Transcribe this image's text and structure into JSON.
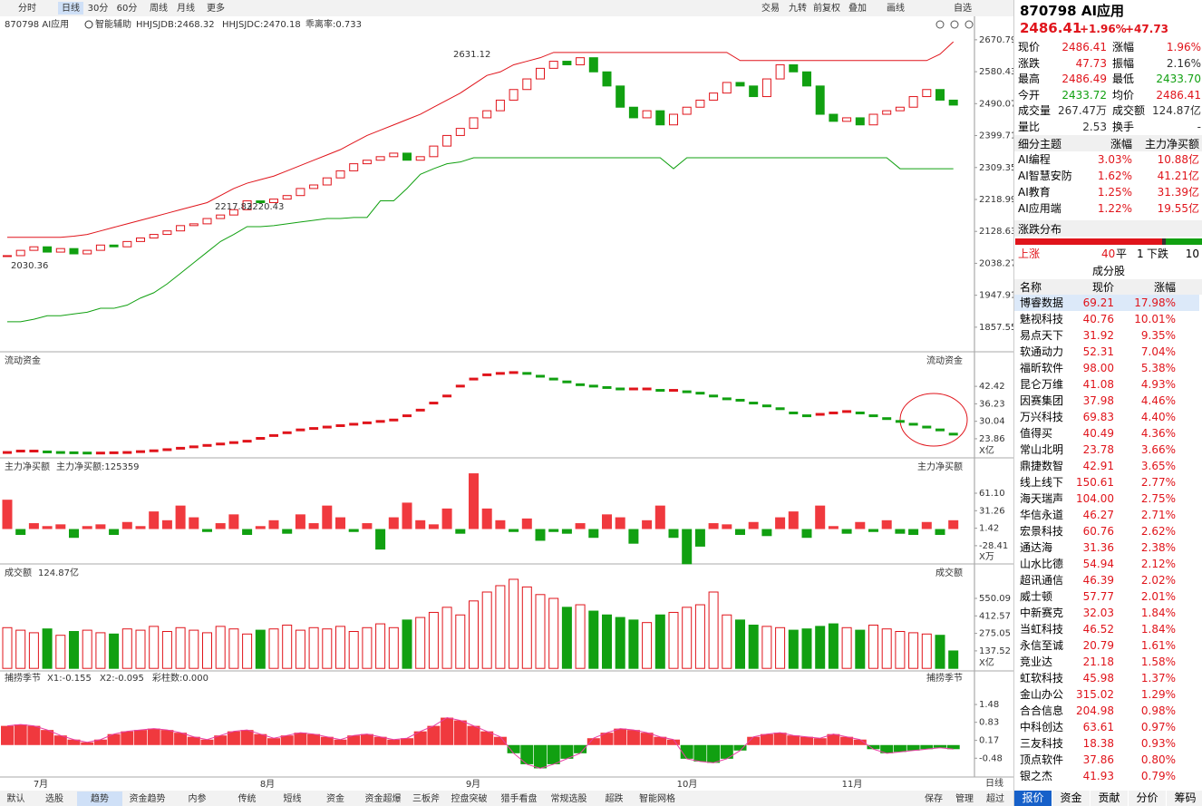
{
  "toolbar": {
    "left": [
      "分时",
      "日线",
      "30分",
      "60分",
      "周线",
      "月线",
      "更多"
    ],
    "right": [
      "交易",
      "九转",
      "前复权",
      "叠加",
      "画线",
      "自选"
    ]
  },
  "main": {
    "code": "870798  AI应用",
    "assist": "智能辅助",
    "jdb": "HHJSJDB:2468.32",
    "jdc": "HHJSJDC:2470.18",
    "bias": "乖离率:0.733",
    "ylim": [
      1788,
      2732
    ],
    "yticks": [
      2670.79,
      2580.43,
      2490.07,
      2399.71,
      2309.35,
      2218.99,
      2128.63,
      2038.27,
      1947.91,
      1857.55
    ],
    "annotations": [
      2631.12,
      2217.83,
      2220.43,
      2030.36
    ],
    "closes": [
      2060,
      2075,
      2085,
      2070,
      2080,
      2065,
      2075,
      2090,
      2085,
      2100,
      2110,
      2120,
      2130,
      2145,
      2150,
      2165,
      2175,
      2190,
      2215,
      2210,
      2220,
      2230,
      2250,
      2260,
      2280,
      2300,
      2320,
      2330,
      2340,
      2350,
      2330,
      2340,
      2370,
      2400,
      2420,
      2450,
      2470,
      2500,
      2530,
      2560,
      2590,
      2610,
      2600,
      2620,
      2580,
      2540,
      2480,
      2450,
      2470,
      2430,
      2460,
      2480,
      2500,
      2520,
      2550,
      2540,
      2510,
      2560,
      2600,
      2580,
      2540,
      2460,
      2440,
      2450,
      2430,
      2460,
      2470,
      2480,
      2510,
      2530,
      2500,
      2486
    ],
    "upper": [
      2112,
      2112,
      2112,
      2112,
      2112,
      2115,
      2120,
      2130,
      2140,
      2150,
      2160,
      2170,
      2180,
      2190,
      2200,
      2210,
      2230,
      2250,
      2265,
      2275,
      2285,
      2300,
      2315,
      2330,
      2345,
      2360,
      2380,
      2400,
      2415,
      2430,
      2445,
      2460,
      2480,
      2500,
      2520,
      2545,
      2570,
      2580,
      2600,
      2610,
      2620,
      2635,
      2635,
      2635,
      2635,
      2635,
      2635,
      2635,
      2635,
      2635,
      2635,
      2635,
      2635,
      2635,
      2635,
      2612,
      2612,
      2612,
      2612,
      2612,
      2612,
      2612,
      2612,
      2612,
      2612,
      2612,
      2612,
      2612,
      2612,
      2612,
      2630,
      2665
    ],
    "lower": [
      1873,
      1873,
      1880,
      1890,
      1890,
      1895,
      1900,
      1911,
      1911,
      1920,
      1940,
      1955,
      1980,
      2010,
      2040,
      2070,
      2100,
      2120,
      2142,
      2142,
      2145,
      2150,
      2155,
      2160,
      2165,
      2165,
      2168,
      2168,
      2215,
      2215,
      2250,
      2290,
      2306,
      2320,
      2325,
      2337,
      2337,
      2337,
      2337,
      2337,
      2337,
      2337,
      2337,
      2337,
      2337,
      2337,
      2337,
      2337,
      2337,
      2337,
      2306,
      2337,
      2337,
      2337,
      2337,
      2337,
      2337,
      2337,
      2337,
      2337,
      2337,
      2337,
      2337,
      2337,
      2337,
      2337,
      2337,
      2306,
      2306,
      2306,
      2306,
      2306
    ]
  },
  "months": [
    "7月",
    "8月",
    "9月",
    "10月",
    "11月"
  ],
  "flow": {
    "title": "流动资金",
    "unit": "X亿",
    "ylim": [
      17.1,
      49.2
    ],
    "yticks": [
      42.42,
      36.23,
      30.04,
      23.86
    ],
    "values": [
      19.0,
      19.5,
      19.5,
      19.2,
      19.0,
      18.9,
      18.8,
      18.8,
      18.9,
      19.0,
      19.3,
      19.6,
      20.0,
      20.5,
      21.0,
      21.5,
      22.0,
      22.5,
      23.0,
      24.0,
      25.0,
      26.0,
      27.0,
      27.5,
      28.0,
      28.5,
      29.0,
      29.5,
      30.0,
      30.5,
      32.0,
      34.0,
      36.5,
      39.0,
      42.5,
      45.0,
      46.5,
      47.0,
      47.3,
      47.0,
      46.0,
      45.0,
      44.0,
      43.0,
      42.5,
      42.0,
      41.5,
      41.5,
      41.5,
      41.0,
      41.0,
      40.5,
      40.0,
      39.0,
      38.0,
      37.5,
      36.5,
      35.5,
      34.5,
      33.0,
      32.0,
      32.5,
      33.0,
      33.5,
      33.0,
      32.0,
      31.0,
      30.0,
      29.0,
      28.0,
      27.0,
      25.5
    ]
  },
  "inflow": {
    "title": "主力净买额",
    "value": "主力净买额:125359",
    "unit": "X万",
    "ylim": [
      -59.5,
      98.2
    ],
    "yticks": [
      {
        "value": 61.1,
        "label": "61.10"
      },
      31.26,
      1.42,
      -28.41
    ],
    "values": [
      50,
      -10,
      10,
      5,
      8,
      -15,
      5,
      8,
      -10,
      12,
      5,
      30,
      15,
      40,
      20,
      -5,
      10,
      25,
      -10,
      5,
      15,
      -8,
      25,
      10,
      40,
      20,
      -5,
      10,
      -35,
      20,
      45,
      15,
      8,
      35,
      -8,
      95,
      35,
      15,
      -5,
      18,
      -20,
      -5,
      -8,
      10,
      -15,
      25,
      20,
      -25,
      15,
      40,
      -15,
      -60,
      -30,
      10,
      8,
      -10,
      12,
      -12,
      20,
      30,
      -15,
      40,
      5,
      -8,
      12,
      -5,
      15,
      -8,
      -10,
      12,
      -10,
      15
    ]
  },
  "volume": {
    "title": "成交额",
    "value": "124.87亿",
    "unit": "X亿",
    "ylim": [
      -20,
      714
    ],
    "yticks": [
      550.09,
      412.57,
      275.05,
      137.52
    ],
    "values": [
      320,
      300,
      280,
      310,
      260,
      290,
      300,
      280,
      270,
      310,
      300,
      330,
      290,
      320,
      300,
      280,
      330,
      310,
      270,
      300,
      310,
      340,
      300,
      320,
      310,
      330,
      290,
      320,
      350,
      320,
      380,
      400,
      440,
      480,
      420,
      530,
      600,
      650,
      700,
      640,
      580,
      550,
      480,
      500,
      450,
      420,
      400,
      380,
      360,
      420,
      440,
      480,
      500,
      600,
      420,
      380,
      340,
      330,
      320,
      300,
      310,
      330,
      350,
      320,
      300,
      340,
      310,
      290,
      280,
      270,
      260,
      137
    ]
  },
  "osc": {
    "title": "捕捞季节",
    "x1": "X1:-0.155",
    "x2": "X2:-0.095",
    "bars": "彩柱数:0.000",
    "ylim": [
      -1.1,
      2.21
    ],
    "yticks": [
      1.48,
      0.83,
      0.17,
      -0.48
    ],
    "values": [
      0.7,
      0.75,
      0.7,
      0.55,
      0.35,
      0.2,
      0.1,
      0.2,
      0.4,
      0.5,
      0.55,
      0.6,
      0.55,
      0.45,
      0.3,
      0.2,
      0.35,
      0.5,
      0.55,
      0.4,
      0.25,
      0.35,
      0.45,
      0.4,
      0.3,
      0.2,
      0.35,
      0.4,
      0.3,
      0.2,
      0.25,
      0.5,
      0.7,
      1.0,
      0.9,
      0.7,
      0.5,
      0.3,
      -0.3,
      -0.7,
      -0.85,
      -0.7,
      -0.5,
      -0.3,
      0.25,
      0.45,
      0.6,
      0.55,
      0.45,
      0.3,
      0.2,
      -0.5,
      -0.6,
      -0.65,
      -0.5,
      -0.2,
      0.3,
      0.4,
      0.45,
      0.35,
      0.3,
      0.25,
      0.4,
      0.3,
      0.2,
      -0.15,
      -0.3,
      -0.25,
      -0.2,
      -0.15,
      -0.1,
      -0.15
    ]
  },
  "period": "日线",
  "bottom_tabs": [
    "默认",
    "选股",
    "趋势",
    "资金趋势",
    "内参",
    "传统",
    "短线",
    "资金",
    "资金超爆",
    "三板斧",
    "控盘突破",
    "猎手看盘",
    "常规选股",
    "超跌",
    "智能网格"
  ],
  "bottom_right": [
    "保存",
    "管理",
    "超过"
  ],
  "quote": {
    "title": "870798 AI应用",
    "price": "2486.41",
    "pct": "+1.96%",
    "chg": "+47.73",
    "rows": [
      [
        "现价",
        "2486.41",
        "涨幅",
        "1.96%"
      ],
      [
        "涨跌",
        "47.73",
        "振幅",
        "2.16%"
      ],
      [
        "最高",
        "2486.49",
        "最低",
        "2433.70"
      ],
      [
        "今开",
        "2433.72",
        "均价",
        "2486.41"
      ],
      [
        "成交量",
        "267.47万",
        "成交额",
        "124.87亿"
      ],
      [
        "量比",
        "2.53",
        "换手",
        "-"
      ]
    ]
  },
  "sectors": {
    "header": [
      "细分主题",
      "涨幅",
      "主力净买额"
    ],
    "rows": [
      [
        "AI编程",
        "3.03%",
        "10.88亿"
      ],
      [
        "AI智慧安防",
        "1.62%",
        "41.21亿"
      ],
      [
        "AI教育",
        "1.25%",
        "31.39亿"
      ],
      [
        "AI应用端",
        "1.22%",
        "19.55亿"
      ]
    ]
  },
  "dist": {
    "title": "涨跌分布",
    "up_label": "上涨",
    "up": 40,
    "flat_label": "平",
    "flat": 1,
    "down_label": "下跌",
    "down": 10
  },
  "stocks": {
    "title": "成分股",
    "header": [
      "名称",
      "现价",
      "涨幅"
    ],
    "rows": [
      [
        "博睿数据",
        "69.21",
        "17.98%"
      ],
      [
        "魅视科技",
        "40.76",
        "10.01%"
      ],
      [
        "易点天下",
        "31.92",
        "9.35%"
      ],
      [
        "软通动力",
        "52.31",
        "7.04%"
      ],
      [
        "福昕软件",
        "98.00",
        "5.38%"
      ],
      [
        "昆仑万维",
        "41.08",
        "4.93%"
      ],
      [
        "因赛集团",
        "37.98",
        "4.46%"
      ],
      [
        "万兴科技",
        "69.83",
        "4.40%"
      ],
      [
        "值得买",
        "40.49",
        "4.36%"
      ],
      [
        "常山北明",
        "23.78",
        "3.66%"
      ],
      [
        "鼎捷数智",
        "42.91",
        "3.65%"
      ],
      [
        "线上线下",
        "150.61",
        "2.77%"
      ],
      [
        "海天瑞声",
        "104.00",
        "2.75%"
      ],
      [
        "华信永道",
        "46.27",
        "2.71%"
      ],
      [
        "宏景科技",
        "60.76",
        "2.62%"
      ],
      [
        "通达海",
        "31.36",
        "2.38%"
      ],
      [
        "山水比德",
        "54.94",
        "2.12%"
      ],
      [
        "超讯通信",
        "46.39",
        "2.02%"
      ],
      [
        "威士顿",
        "57.77",
        "2.01%"
      ],
      [
        "中新赛克",
        "32.03",
        "1.84%"
      ],
      [
        "当虹科技",
        "46.52",
        "1.84%"
      ],
      [
        "永信至诚",
        "20.79",
        "1.61%"
      ],
      [
        "竞业达",
        "21.18",
        "1.58%"
      ],
      [
        "虹软科技",
        "45.98",
        "1.37%"
      ],
      [
        "金山办公",
        "315.02",
        "1.29%"
      ],
      [
        "合合信息",
        "204.98",
        "0.98%"
      ],
      [
        "中科创达",
        "63.61",
        "0.97%"
      ],
      [
        "三友科技",
        "18.38",
        "0.93%"
      ],
      [
        "顶点软件",
        "37.86",
        "0.80%"
      ],
      [
        "银之杰",
        "41.93",
        "0.79%"
      ]
    ]
  },
  "right_tabs": [
    "报价",
    "资金",
    "贡献",
    "分价",
    "筹码"
  ]
}
